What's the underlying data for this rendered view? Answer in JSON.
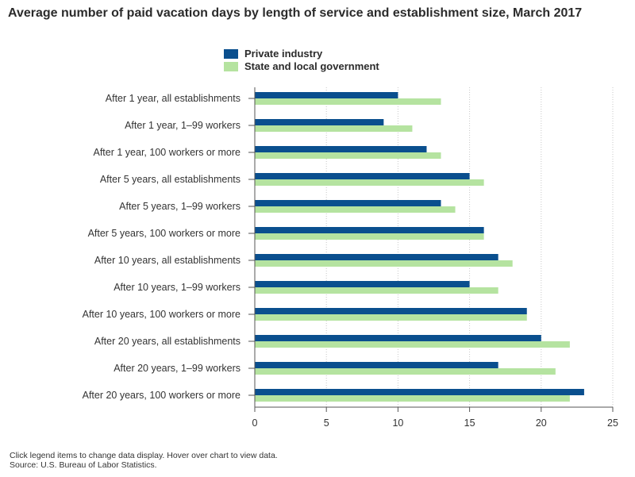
{
  "title": "Average number of paid vacation days by length of service and establishment size, March 2017",
  "legend": [
    {
      "name": "Private industry",
      "color": "#0a4f8e"
    },
    {
      "name": "State and local government",
      "color": "#b5e3a0"
    }
  ],
  "footer": {
    "note": "Click legend items to change data display. Hover over chart to view data.",
    "source": "Source: U.S. Bureau of Labor Statistics."
  },
  "chart_data": {
    "type": "bar",
    "orientation": "horizontal",
    "title": "Average number of paid vacation days by length of service and establishment size, March 2017",
    "categories": [
      "After 1 year, all establishments",
      "After 1 year, 1–99 workers",
      "After 1 year, 100 workers or more",
      "After 5 years, all establishments",
      "After 5 years, 1–99 workers",
      "After 5 years, 100 workers or more",
      "After 10 years, all establishments",
      "After 10 years, 1–99 workers",
      "After 10 years, 100 workers or more",
      "After 20 years, all establishments",
      "After 20 years, 1–99 workers",
      "After 20 years, 100 workers or more"
    ],
    "series": [
      {
        "name": "Private industry",
        "color": "#0a4f8e",
        "values": [
          10,
          9,
          12,
          15,
          13,
          16,
          17,
          15,
          19,
          20,
          17,
          23
        ]
      },
      {
        "name": "State and local government",
        "color": "#b5e3a0",
        "values": [
          13,
          11,
          13,
          16,
          14,
          16,
          18,
          17,
          19,
          22,
          21,
          22
        ]
      }
    ],
    "xlim": [
      0,
      25
    ],
    "xticks": [
      0,
      5,
      10,
      15,
      20,
      25
    ],
    "xlabel": "",
    "ylabel": "",
    "grid": "vertical dotted",
    "legend_position": "top"
  }
}
